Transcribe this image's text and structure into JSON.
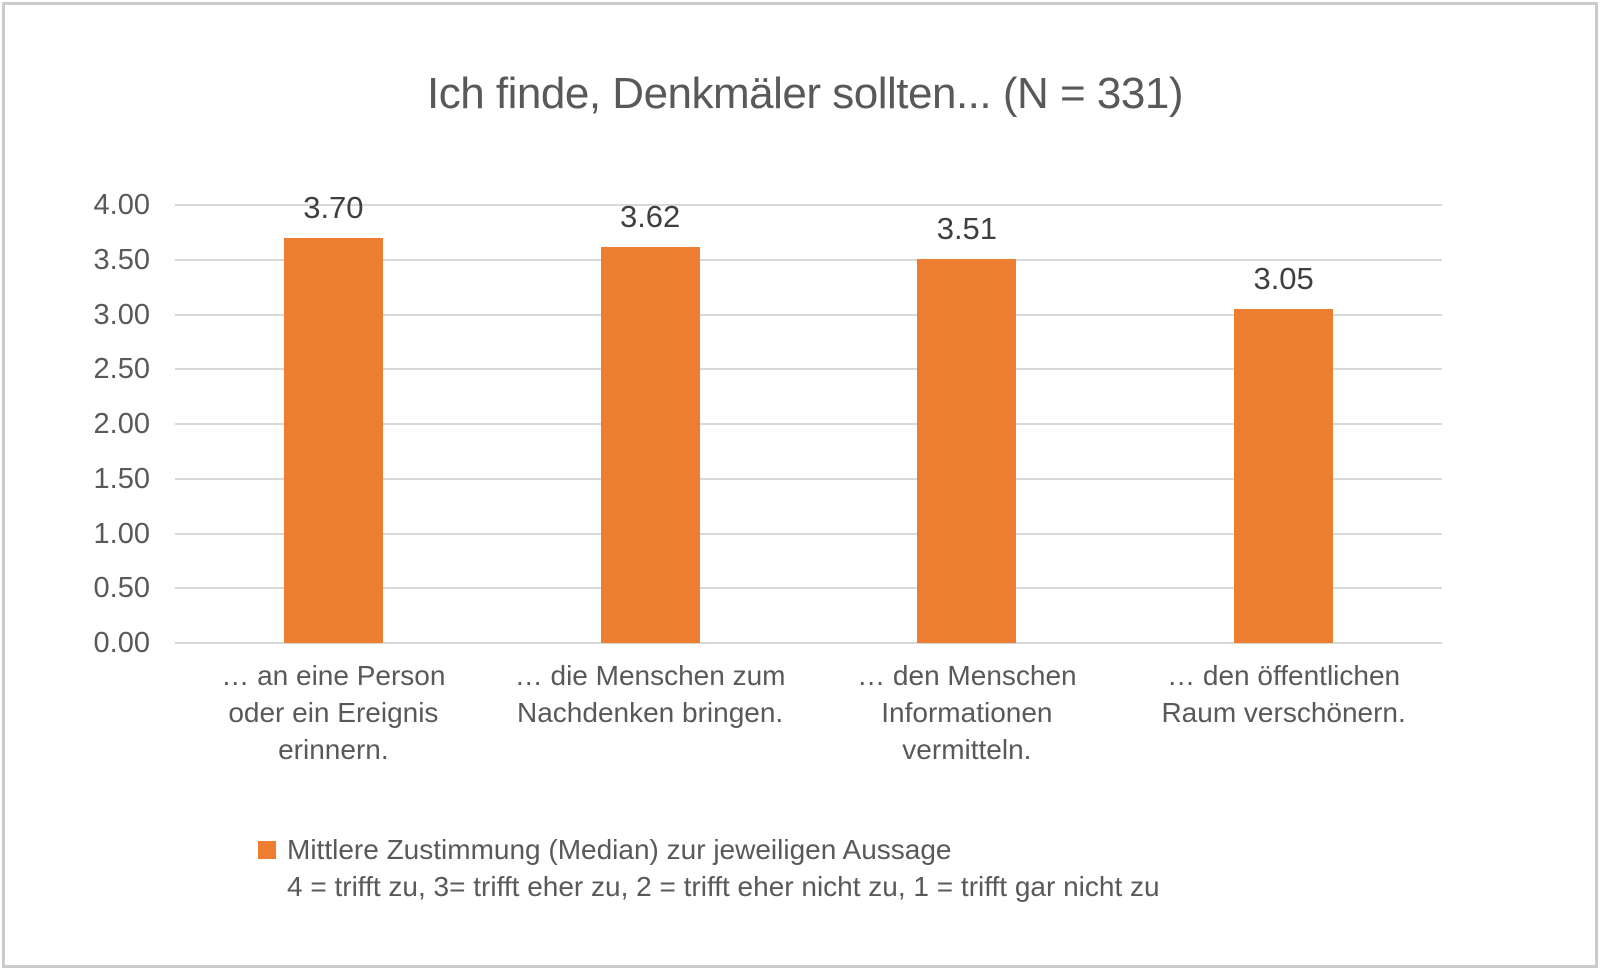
{
  "chart_data": {
    "type": "bar",
    "title": "Ich finde, Denkmäler sollten... (N = 331)",
    "categories": [
      "… an eine Person oder ein Ereignis erinnern.",
      "… die Menschen zum Nachdenken bringen.",
      "… den Menschen Informationen vermitteln.",
      "… den öffentlichen Raum verschönern."
    ],
    "category_display_lines": [
      "… an eine Person\noder ein Ereignis\nerinnern.",
      "… die Menschen zum\nNachdenken bringen.",
      "… den Menschen\nInformationen\nvermitteln.",
      "… den öffentlichen\nRaum verschönern."
    ],
    "values": [
      3.7,
      3.62,
      3.51,
      3.05
    ],
    "value_labels": [
      "3.70",
      "3.62",
      "3.51",
      "3.05"
    ],
    "ylim": [
      0,
      4
    ],
    "yticks": [
      "4.00",
      "3.50",
      "3.00",
      "2.50",
      "2.00",
      "1.50",
      "1.00",
      "0.50",
      "0.00"
    ],
    "grid": "horizontal",
    "legend_position": "bottom",
    "legend": {
      "label": "Mittlere Zustimmung (Median) zur jeweiligen Aussage",
      "scale_note": "4 = trifft zu, 3= trifft eher zu, 2 = trifft eher nicht zu, 1 = trifft gar nicht zu"
    }
  },
  "colors": {
    "bar": "#ED7D31",
    "axis_text": "#595959",
    "data_label": "#3F3F3F",
    "gridline": "#D9D9D9",
    "border": "#CBCBCB",
    "background": "#FFFFFF"
  }
}
